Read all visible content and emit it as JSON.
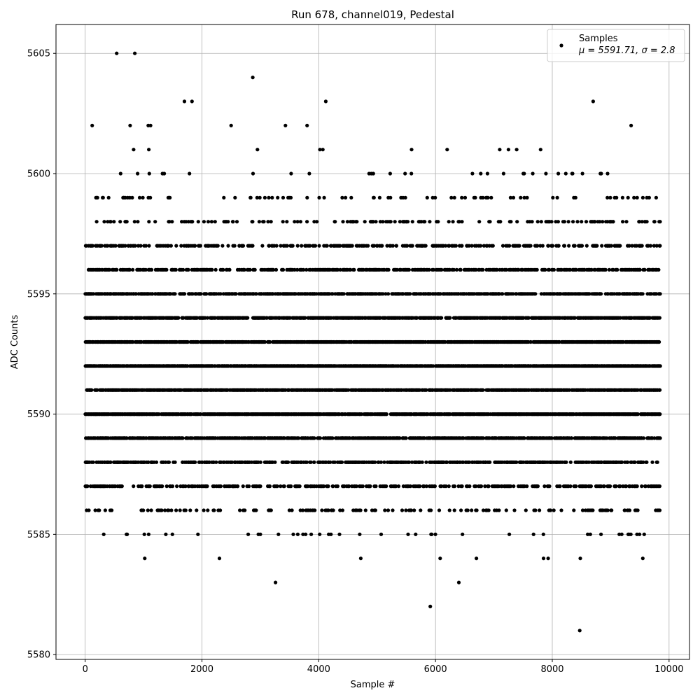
{
  "chart_data": {
    "type": "scatter",
    "title": "Run 678, channel019, Pedestal",
    "xlabel": "Sample #",
    "ylabel": "ADC Counts",
    "xlim": [
      -500,
      10350
    ],
    "ylim": [
      5579.8,
      5606.2
    ],
    "xticks": [
      0,
      2000,
      4000,
      6000,
      8000,
      10000
    ],
    "xtick_labels": [
      "0",
      "2000",
      "4000",
      "6000",
      "8000",
      "10000"
    ],
    "yticks": [
      5580,
      5585,
      5590,
      5595,
      5600,
      5605
    ],
    "ytick_labels": [
      "5580",
      "5585",
      "5590",
      "5595",
      "5600",
      "5605"
    ],
    "grid": true,
    "legend": {
      "placement": "top-right",
      "series_label": "Samples",
      "stats_label": "μ = 5591.71, σ = 2.8"
    },
    "marker_color": "#000000",
    "series": [
      {
        "name": "Samples",
        "n_samples": 9850,
        "mean": 5591.71,
        "sigma": 2.8,
        "level_density": [
          [
            5581,
            0.0001
          ],
          [
            5582,
            0.0001
          ],
          [
            5583,
            0.0002
          ],
          [
            5584,
            0.0008
          ],
          [
            5585,
            0.006
          ],
          [
            5586,
            0.02
          ],
          [
            5587,
            0.045
          ],
          [
            5588,
            0.07
          ],
          [
            5589,
            0.095
          ],
          [
            5590,
            0.11
          ],
          [
            5591,
            0.115
          ],
          [
            5592,
            0.115
          ],
          [
            5593,
            0.11
          ],
          [
            5594,
            0.095
          ],
          [
            5595,
            0.075
          ],
          [
            5596,
            0.055
          ],
          [
            5597,
            0.04
          ],
          [
            5598,
            0.025
          ],
          [
            5599,
            0.009
          ],
          [
            5600,
            0.004
          ],
          [
            5601,
            0.0012
          ],
          [
            5602,
            0.0007
          ],
          [
            5603,
            0.0004
          ],
          [
            5604,
            0.0001
          ],
          [
            5605,
            0.0002
          ]
        ],
        "outliers": [
          [
            540,
            5605
          ],
          [
            850,
            5605
          ],
          [
            2870,
            5604
          ],
          [
            1700,
            5603
          ],
          [
            1830,
            5603
          ],
          [
            4120,
            5603
          ],
          [
            8700,
            5603
          ],
          [
            120,
            5602
          ],
          [
            770,
            5602
          ],
          [
            1080,
            5602
          ],
          [
            1120,
            5602
          ],
          [
            2500,
            5602
          ],
          [
            3430,
            5602
          ],
          [
            3800,
            5602
          ],
          [
            9350,
            5602
          ],
          [
            830,
            5601
          ],
          [
            1090,
            5601
          ],
          [
            2950,
            5601
          ],
          [
            4020,
            5601
          ],
          [
            4070,
            5601
          ],
          [
            5590,
            5601
          ],
          [
            6200,
            5601
          ],
          [
            7100,
            5601
          ],
          [
            7250,
            5601
          ],
          [
            7390,
            5601
          ],
          [
            7800,
            5601
          ],
          [
            3260,
            5583
          ],
          [
            6400,
            5583
          ],
          [
            1020,
            5584
          ],
          [
            2300,
            5584
          ],
          [
            4720,
            5584
          ],
          [
            6080,
            5584
          ],
          [
            6700,
            5584
          ],
          [
            7850,
            5584
          ],
          [
            7930,
            5584
          ],
          [
            8480,
            5584
          ],
          [
            9550,
            5584
          ],
          [
            5910,
            5582
          ],
          [
            8470,
            5581
          ]
        ]
      }
    ]
  }
}
